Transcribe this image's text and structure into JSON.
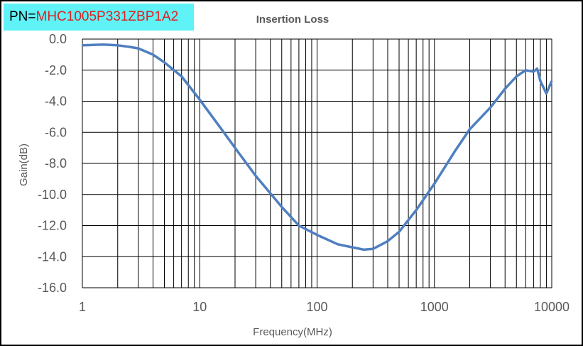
{
  "part_number": {
    "prefix": "PN=",
    "value": "MHC1005P331ZBP1A2"
  },
  "chart_data": {
    "type": "line",
    "title": "Insertion Loss",
    "xlabel": "Frequency(MHz)",
    "ylabel": "Gain(dB)",
    "xscale": "log",
    "xlim": [
      1,
      10000
    ],
    "ylim": [
      -16,
      0
    ],
    "grid": true,
    "x_ticks": [
      "1",
      "10",
      "100",
      "1000",
      "10000"
    ],
    "y_ticks": [
      "0.0",
      "-2.0",
      "-4.0",
      "-6.0",
      "-8.0",
      "-10.0",
      "-12.0",
      "-14.0",
      "-16.0"
    ],
    "series": [
      {
        "name": "Insertion Loss",
        "color": "#4f7fbf",
        "x": [
          1,
          1.5,
          2,
          2.5,
          3,
          4,
          5,
          7,
          10,
          15,
          20,
          30,
          50,
          70,
          100,
          150,
          200,
          250,
          300,
          400,
          500,
          700,
          1000,
          1500,
          2000,
          3000,
          4000,
          5000,
          6000,
          7000,
          7500,
          8000,
          9000,
          10000
        ],
        "y": [
          -0.4,
          -0.35,
          -0.4,
          -0.5,
          -0.6,
          -1.0,
          -1.5,
          -2.4,
          -3.9,
          -5.7,
          -7.0,
          -8.8,
          -10.8,
          -12.0,
          -12.6,
          -13.2,
          -13.4,
          -13.55,
          -13.5,
          -13.0,
          -12.4,
          -11.0,
          -9.3,
          -7.2,
          -5.8,
          -4.4,
          -3.2,
          -2.4,
          -2.0,
          -2.1,
          -1.9,
          -2.7,
          -3.5,
          -2.7
        ]
      }
    ]
  }
}
